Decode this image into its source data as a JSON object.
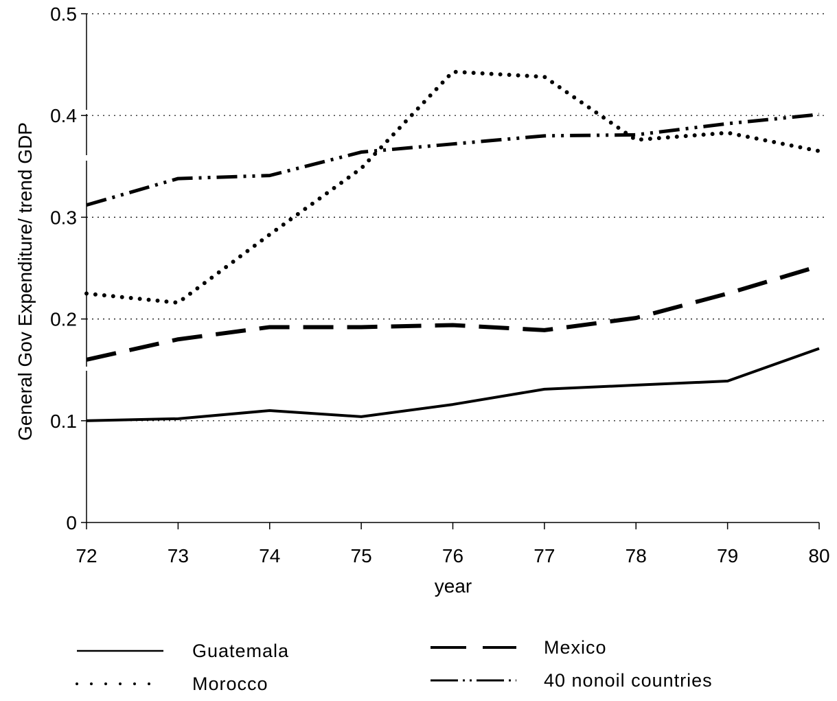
{
  "chart_data": {
    "type": "line",
    "xlabel": "year",
    "ylabel": "General Gov Expenditure/ trend GDP",
    "categories": [
      "72",
      "73",
      "74",
      "75",
      "76",
      "77",
      "78",
      "79",
      "80"
    ],
    "y_tick_labels": [
      "0",
      "0.1",
      "0.2",
      "0.3",
      "0.4",
      "0.5"
    ],
    "ylim": [
      0,
      0.5
    ],
    "grid": "horizontal dotted",
    "legend_position": "bottom",
    "series": [
      {
        "name": "Guatemala",
        "style": "solid",
        "values": [
          0.1,
          0.102,
          0.11,
          0.104,
          0.116,
          0.131,
          0.135,
          0.139,
          0.171
        ]
      },
      {
        "name": "Mexico",
        "style": "dashed",
        "values": [
          0.16,
          0.18,
          0.192,
          0.192,
          0.194,
          0.189,
          0.201,
          0.225,
          0.252
        ]
      },
      {
        "name": "Morocco",
        "style": "dotted",
        "values": [
          0.225,
          0.216,
          0.283,
          0.348,
          0.443,
          0.438,
          0.376,
          0.383,
          0.365
        ]
      },
      {
        "name": "40 nonoil countries",
        "style": "dash-dot-dot",
        "values": [
          0.312,
          0.338,
          0.341,
          0.364,
          0.372,
          0.38,
          0.381,
          0.392,
          0.401
        ]
      }
    ]
  }
}
